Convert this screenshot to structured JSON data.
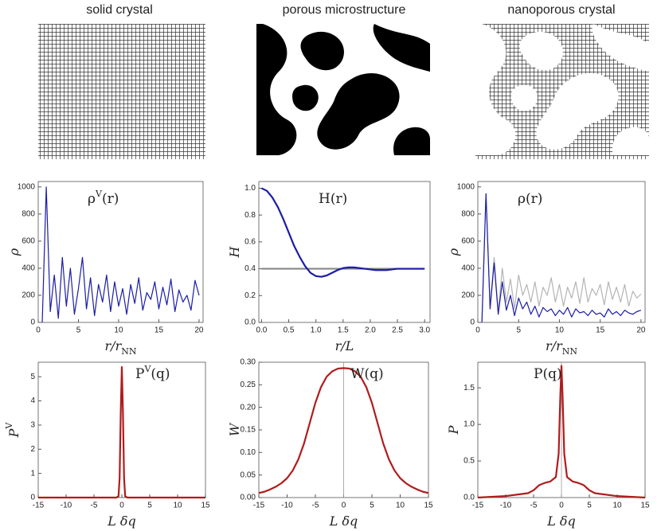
{
  "panel_titles": [
    "solid crystal",
    "porous microstructure",
    "nanoporous crystal"
  ],
  "chart_data": [
    {
      "type": "line",
      "annotation": [
        {
          "text": "ρ"
        },
        {
          "text": "V",
          "sup": true
        },
        {
          "text": "(r)"
        }
      ],
      "annotation_color": "#2a5a8a",
      "y_label": [
        {
          "text": "ρ"
        }
      ],
      "x_label": [
        {
          "text": "r/r"
        },
        {
          "text": "NN",
          "sub": true
        }
      ],
      "x": [
        0.5,
        1,
        1.5,
        2,
        2.5,
        3,
        3.5,
        4,
        4.5,
        5,
        5.5,
        6,
        6.5,
        7,
        7.5,
        8,
        8.5,
        9,
        9.5,
        10,
        10.5,
        11,
        11.5,
        12,
        12.5,
        13,
        13.5,
        14,
        14.5,
        15,
        15.5,
        16,
        16.5,
        17,
        17.5,
        18,
        18.5,
        19,
        19.5,
        20
      ],
      "series": [
        {
          "color": "#1c1ca8",
          "values": [
            0,
            1000,
            80,
            350,
            30,
            480,
            120,
            400,
            60,
            250,
            480,
            100,
            330,
            50,
            280,
            150,
            350,
            80,
            300,
            120,
            250,
            60,
            280,
            140,
            330,
            90,
            220,
            170,
            300,
            100,
            260,
            130,
            320,
            80,
            240,
            150,
            200,
            90,
            310,
            200
          ]
        }
      ],
      "xlim": [
        0,
        20.5
      ],
      "ylim": [
        0,
        1040
      ],
      "xticks": [
        0,
        5,
        10,
        15,
        20
      ],
      "yticks": [
        0,
        200,
        400,
        600,
        800,
        1000
      ]
    },
    {
      "type": "line",
      "annotation": [
        {
          "text": "H(r)"
        }
      ],
      "annotation_color": "#2a5a8a",
      "y_label": [
        {
          "text": "H"
        }
      ],
      "x_label": [
        {
          "text": "r/L"
        }
      ],
      "x": [
        0,
        0.1,
        0.2,
        0.3,
        0.4,
        0.5,
        0.6,
        0.7,
        0.8,
        0.9,
        1,
        1.1,
        1.2,
        1.3,
        1.4,
        1.5,
        1.6,
        1.7,
        1.8,
        1.9,
        2,
        2.1,
        2.2,
        2.3,
        2.4,
        2.5,
        2.6,
        2.7,
        2.8,
        2.9,
        3
      ],
      "series": [
        {
          "color": "#888888",
          "values": [
            0.4,
            0.4,
            0.4,
            0.4,
            0.4,
            0.4,
            0.4,
            0.4,
            0.4,
            0.4,
            0.4,
            0.4,
            0.4,
            0.4,
            0.4,
            0.4,
            0.4,
            0.4,
            0.4,
            0.4,
            0.4,
            0.4,
            0.4,
            0.4,
            0.4,
            0.4,
            0.4,
            0.4,
            0.4,
            0.4,
            0.4
          ]
        },
        {
          "color": "#1c1ca8",
          "values": [
            1.0,
            0.98,
            0.93,
            0.86,
            0.77,
            0.67,
            0.57,
            0.49,
            0.42,
            0.37,
            0.345,
            0.34,
            0.35,
            0.37,
            0.39,
            0.405,
            0.41,
            0.41,
            0.405,
            0.4,
            0.395,
            0.39,
            0.39,
            0.39,
            0.395,
            0.4,
            0.4,
            0.4,
            0.4,
            0.4,
            0.4
          ]
        }
      ],
      "xlim": [
        -0.05,
        3.1
      ],
      "ylim": [
        0,
        1.05
      ],
      "xticks": [
        {
          "value": 0,
          "label": "0.0"
        },
        0.5,
        {
          "value": 1,
          "label": "1.0"
        },
        1.5,
        {
          "value": 2,
          "label": "2.0"
        },
        2.5,
        {
          "value": 3,
          "label": "3.0"
        }
      ],
      "yticks": [
        {
          "value": 0,
          "label": "0.0"
        },
        0.2,
        0.4,
        0.6,
        0.8,
        {
          "value": 1,
          "label": "1.0"
        }
      ]
    },
    {
      "type": "line",
      "annotation": [
        {
          "text": "ρ(r)"
        }
      ],
      "annotation_color": "#2a5a8a",
      "y_label": [
        {
          "text": "ρ"
        }
      ],
      "x_label": [
        {
          "text": "r/r"
        },
        {
          "text": "NN",
          "sub": true
        }
      ],
      "x": [
        0.5,
        1,
        1.5,
        2,
        2.5,
        3,
        3.5,
        4,
        4.5,
        5,
        5.5,
        6,
        6.5,
        7,
        7.5,
        8,
        8.5,
        9,
        9.5,
        10,
        10.5,
        11,
        11.5,
        12,
        12.5,
        13,
        13.5,
        14,
        14.5,
        15,
        15.5,
        16,
        16.5,
        17,
        17.5,
        18,
        18.5,
        19,
        19.5,
        20
      ],
      "series": [
        {
          "color": "#b4b4b4",
          "values": [
            0,
            950,
            120,
            480,
            80,
            400,
            150,
            320,
            100,
            350,
            200,
            280,
            150,
            300,
            120,
            260,
            200,
            330,
            150,
            280,
            120,
            260,
            180,
            300,
            140,
            330,
            150,
            250,
            200,
            280,
            130,
            300,
            170,
            260,
            150,
            280,
            120,
            230,
            180,
            210
          ]
        },
        {
          "color": "#1c1ca8",
          "values": [
            0,
            950,
            100,
            440,
            60,
            300,
            90,
            200,
            50,
            180,
            100,
            150,
            60,
            120,
            40,
            110,
            80,
            100,
            50,
            90,
            60,
            110,
            40,
            100,
            70,
            80,
            50,
            90,
            60,
            70,
            40,
            100,
            60,
            80,
            50,
            90,
            70,
            60,
            80,
            90
          ]
        }
      ],
      "xlim": [
        0,
        20.5
      ],
      "ylim": [
        0,
        1040
      ],
      "xticks": [
        0,
        5,
        10,
        15,
        20
      ],
      "yticks": [
        0,
        200,
        400,
        600,
        800,
        1000
      ]
    },
    {
      "type": "line",
      "annotation": [
        {
          "text": "P"
        },
        {
          "text": "V",
          "sup": true
        },
        {
          "text": "(q)"
        }
      ],
      "annotation_color": "#b01c1c",
      "y_label": [
        {
          "text": "P"
        },
        {
          "text": "V",
          "sup": true
        }
      ],
      "x_label": [
        {
          "text": "L δq"
        }
      ],
      "x": [
        -15,
        -1,
        -0.6,
        -0.4,
        -0.2,
        0,
        0.2,
        0.4,
        0.6,
        1,
        15
      ],
      "series": [
        {
          "color": "#b01c1c",
          "values": [
            0,
            0,
            0.05,
            0.8,
            3.5,
            5.4,
            3.5,
            0.8,
            0.05,
            0,
            0
          ]
        }
      ],
      "xlim": [
        -15,
        15
      ],
      "ylim": [
        0,
        5.6
      ],
      "xticks": [
        -15,
        -10,
        -5,
        0,
        5,
        10,
        15
      ],
      "yticks": [
        0,
        1,
        2,
        3,
        4,
        5
      ]
    },
    {
      "type": "line",
      "annotation": [
        {
          "text": "W(q)"
        }
      ],
      "annotation_color": "#b01c1c",
      "y_label": [
        {
          "text": "W"
        }
      ],
      "x_label": [
        {
          "text": "L δq"
        }
      ],
      "vline": 0,
      "x": [
        -15,
        -14,
        -13,
        -12,
        -11,
        -10,
        -9,
        -8,
        -7,
        -6,
        -5,
        -4,
        -3,
        -2,
        -1,
        0,
        1,
        2,
        3,
        4,
        5,
        6,
        7,
        8,
        9,
        10,
        11,
        12,
        13,
        14,
        15
      ],
      "series": [
        {
          "color": "#b01c1c",
          "values": [
            0.01,
            0.013,
            0.018,
            0.024,
            0.032,
            0.043,
            0.06,
            0.085,
            0.12,
            0.165,
            0.21,
            0.245,
            0.268,
            0.28,
            0.286,
            0.287,
            0.286,
            0.28,
            0.268,
            0.245,
            0.21,
            0.165,
            0.12,
            0.085,
            0.06,
            0.043,
            0.032,
            0.024,
            0.018,
            0.013,
            0.01
          ]
        }
      ],
      "xlim": [
        -15,
        15
      ],
      "ylim": [
        0,
        0.3
      ],
      "xticks": [
        -15,
        -10,
        -5,
        0,
        5,
        10,
        15
      ],
      "yticks": [
        {
          "value": 0,
          "label": "0.00"
        },
        {
          "value": 0.05,
          "label": "0.05"
        },
        {
          "value": 0.1,
          "label": "0.10"
        },
        {
          "value": 0.15,
          "label": "0.15"
        },
        {
          "value": 0.2,
          "label": "0.20"
        },
        {
          "value": 0.25,
          "label": "0.25"
        },
        {
          "value": 0.3,
          "label": "0.30"
        }
      ]
    },
    {
      "type": "line",
      "annotation": [
        {
          "text": "P(q)"
        }
      ],
      "annotation_color": "#b01c1c",
      "y_label": [
        {
          "text": "P"
        }
      ],
      "x_label": [
        {
          "text": "L δq"
        }
      ],
      "vline": 0,
      "x": [
        -15,
        -10,
        -6,
        -5,
        -4,
        -3,
        -2,
        -1,
        -0.5,
        -0.2,
        0,
        0.2,
        0.5,
        1,
        2,
        3,
        4,
        5,
        6,
        10,
        15
      ],
      "series": [
        {
          "color": "#b01c1c",
          "values": [
            0,
            0.02,
            0.06,
            0.1,
            0.17,
            0.2,
            0.22,
            0.28,
            0.6,
            1.4,
            1.8,
            1.4,
            0.6,
            0.28,
            0.22,
            0.2,
            0.17,
            0.1,
            0.06,
            0.02,
            0
          ]
        }
      ],
      "xlim": [
        -15,
        15
      ],
      "ylim": [
        0,
        1.85
      ],
      "xticks": [
        -15,
        -10,
        -5,
        0,
        5,
        10,
        15
      ],
      "yticks": [
        {
          "value": 0,
          "label": "0.0"
        },
        0.5,
        {
          "value": 1,
          "label": "1.0"
        },
        1.5
      ]
    }
  ]
}
